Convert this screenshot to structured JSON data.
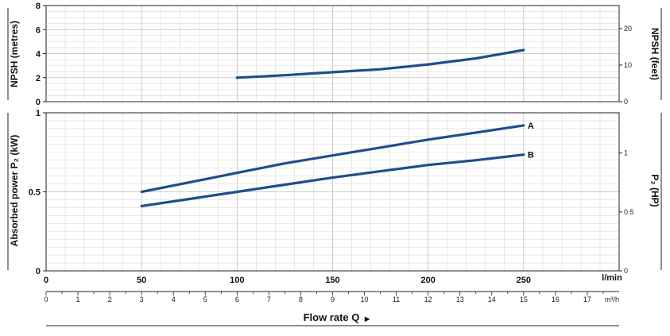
{
  "chart_data": [
    {
      "type": "line",
      "ylabel_left": "NPSH (metres)",
      "ylabel_right": "NPSH (feet)",
      "xlim": [
        0,
        300
      ],
      "ylim": [
        0,
        8
      ],
      "ylim_right": [
        0,
        26.25
      ],
      "yticks": [
        0,
        2,
        4,
        6,
        8
      ],
      "yticks_right": [
        0,
        10,
        20
      ],
      "grid": true,
      "series": [
        {
          "name": "",
          "x": [
            100,
            125,
            150,
            175,
            200,
            225,
            250
          ],
          "y": [
            2.0,
            2.2,
            2.45,
            2.7,
            3.1,
            3.6,
            4.3
          ]
        }
      ]
    },
    {
      "type": "line",
      "ylabel_left": "Absorbed power  P₂  (kW)",
      "ylabel_right": "P₂  (HP)",
      "xlim": [
        0,
        300
      ],
      "ylim": [
        0,
        1
      ],
      "ylim_right": [
        0,
        1.341
      ],
      "yticks": [
        0,
        0.5,
        1
      ],
      "yticks_right": [
        0,
        0.5,
        1
      ],
      "grid": true,
      "series": [
        {
          "name": "A",
          "x": [
            50,
            75,
            100,
            125,
            150,
            175,
            200,
            225,
            250
          ],
          "y": [
            0.5,
            0.56,
            0.62,
            0.68,
            0.73,
            0.78,
            0.83,
            0.875,
            0.92
          ]
        },
        {
          "name": "B",
          "x": [
            50,
            75,
            100,
            125,
            150,
            175,
            200,
            225,
            250
          ],
          "y": [
            0.41,
            0.455,
            0.5,
            0.545,
            0.59,
            0.63,
            0.67,
            0.7,
            0.735
          ]
        }
      ]
    }
  ],
  "x_axis": {
    "lmin_unit": "l/min",
    "lmin_ticks": [
      0,
      50,
      100,
      150,
      200,
      250
    ],
    "m3h_unit": "m³/h",
    "m3h_ticks": [
      0,
      1,
      2,
      3,
      4,
      5,
      6,
      7,
      8,
      9,
      10,
      11,
      12,
      13,
      14,
      15,
      16,
      17
    ],
    "title": "Flow rate Q",
    "title_arrow": "▸"
  }
}
